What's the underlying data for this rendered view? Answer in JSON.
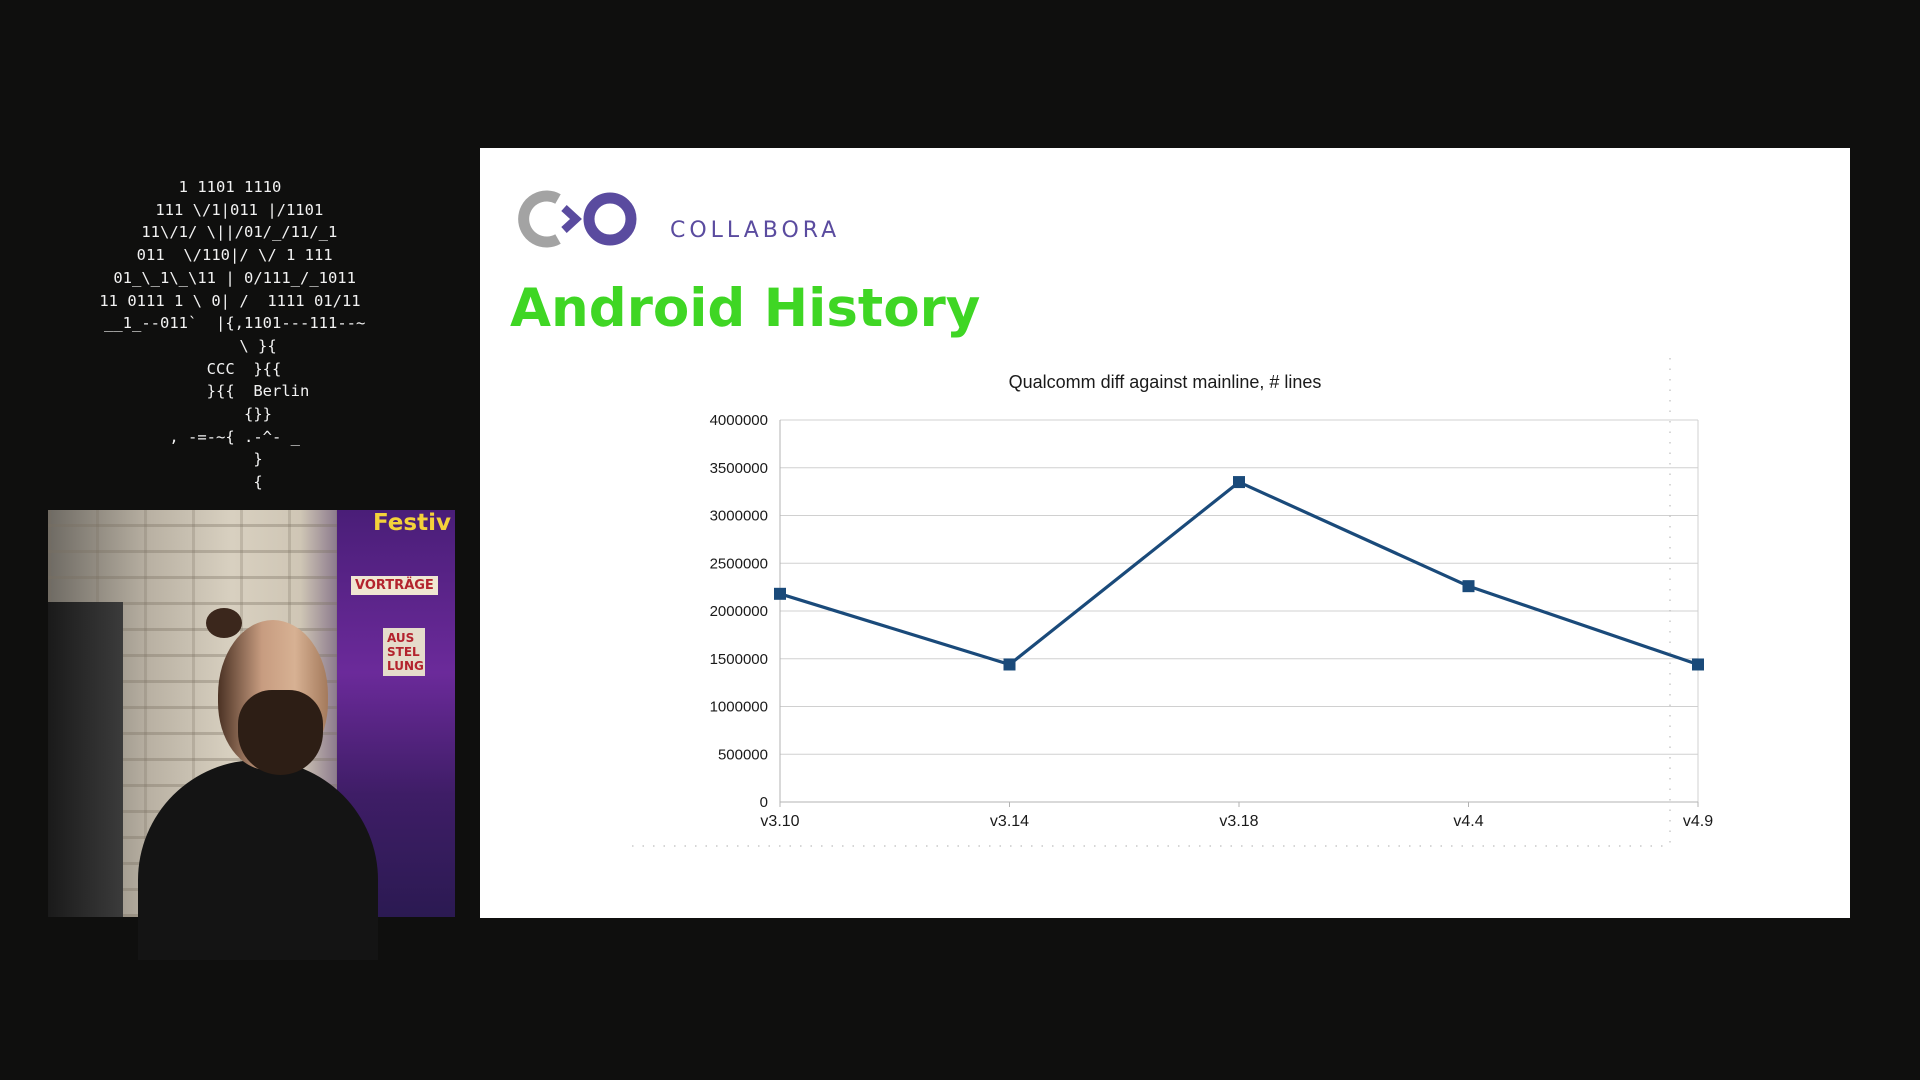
{
  "stream": {
    "ascii_logo": "1 1101 1110\n  111 \\/1|011 |/1101\n  11\\/1/ \\||/01/_/11/_1\n 011  \\/110|/ \\/ 1 111\n 01_\\_1\\_\\11 | 0/111_/_1011\n11 0111 1 \\ 0| /  1111 01/11\n __1_--011`  |{,1101---111--~\n      \\ }{\n   CCC  }{{\n      }{{  Berlin\n      {}}\n , -=-~{ .-^- _\n      }\n      {",
    "video": {
      "poster_title": "Festiv",
      "poster_label_1": "VORTRÄGE",
      "poster_label_2": "AUS STEL LUNG"
    }
  },
  "slide": {
    "brand_name": "COLLABORA",
    "brand_colors": {
      "grey": "#a3a3a3",
      "purple": "#5a4b9f"
    },
    "title": "Android History",
    "title_color": "#3fd624"
  },
  "chart_data": {
    "type": "line",
    "title": "Qualcomm diff against mainline, # lines",
    "categories": [
      "v3.10",
      "v3.14",
      "v3.18",
      "v4.4",
      "v4.9"
    ],
    "series": [
      {
        "values": [
          2180000,
          1440000,
          3350000,
          2260000,
          1440000
        ],
        "color": "#1a4a7a"
      }
    ],
    "ylim": [
      0,
      4000000
    ],
    "yticks": [
      0,
      500000,
      1000000,
      1500000,
      2000000,
      2500000,
      3000000,
      3500000,
      4000000
    ],
    "grid": true,
    "legend": "none"
  }
}
